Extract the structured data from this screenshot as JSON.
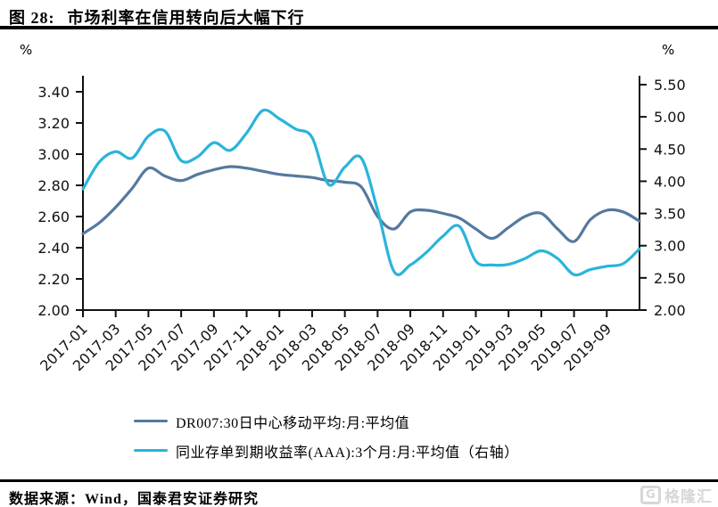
{
  "header": {
    "figure_label": "图 28:",
    "title": "市场利率在信用转向后大幅下行"
  },
  "footer": {
    "source": "数据来源：Wind，国泰君安证券研究"
  },
  "watermark": {
    "icon": "gelonghui-logo-icon",
    "text": "格隆汇"
  },
  "chart_data": {
    "type": "line",
    "title": "市场利率在信用转向后大幅下行",
    "legend_position": "bottom",
    "grid": false,
    "months": [
      "2017-01",
      "2017-02",
      "2017-03",
      "2017-04",
      "2017-05",
      "2017-06",
      "2017-07",
      "2017-08",
      "2017-09",
      "2017-10",
      "2017-11",
      "2017-12",
      "2018-01",
      "2018-02",
      "2018-03",
      "2018-04",
      "2018-05",
      "2018-06",
      "2018-07",
      "2018-08",
      "2018-09",
      "2018-10",
      "2018-11",
      "2018-12",
      "2019-01",
      "2019-02",
      "2019-03",
      "2019-04",
      "2019-05",
      "2019-06",
      "2019-07",
      "2019-08",
      "2019-09",
      "2019-10",
      "2019-11"
    ],
    "x_tick_labels": [
      "2017-01",
      "2017-03",
      "2017-05",
      "2017-07",
      "2017-09",
      "2017-11",
      "2018-01",
      "2018-03",
      "2018-05",
      "2018-07",
      "2018-09",
      "2018-11",
      "2019-01",
      "2019-03",
      "2019-05",
      "2019-07",
      "2019-09"
    ],
    "left_axis": {
      "unit": "%",
      "min": 2.0,
      "max": 3.4,
      "ticks": [
        "2.00",
        "2.20",
        "2.40",
        "2.60",
        "2.80",
        "3.00",
        "3.20",
        "3.40"
      ]
    },
    "right_axis": {
      "unit": "%",
      "min": 2.0,
      "max": 5.5,
      "ticks": [
        "2.00",
        "2.50",
        "3.00",
        "3.50",
        "4.00",
        "4.50",
        "5.00",
        "5.50"
      ]
    },
    "series": [
      {
        "name": "DR007:30日中心移动平均:月:平均值",
        "axis": "left",
        "color": "#55799F",
        "values": [
          2.49,
          2.56,
          2.66,
          2.78,
          2.91,
          2.86,
          2.83,
          2.87,
          2.9,
          2.92,
          2.91,
          2.89,
          2.87,
          2.86,
          2.85,
          2.83,
          2.82,
          2.79,
          2.6,
          2.52,
          2.63,
          2.64,
          2.62,
          2.59,
          2.52,
          2.46,
          2.53,
          2.6,
          2.62,
          2.52,
          2.44,
          2.58,
          2.64,
          2.63,
          2.57
        ]
      },
      {
        "name": "同业存单到期收益率(AAA):3个月:月:平均值（右轴）",
        "axis": "right",
        "color": "#2AB4DB",
        "values": [
          3.88,
          4.3,
          4.46,
          4.36,
          4.7,
          4.78,
          4.32,
          4.38,
          4.6,
          4.48,
          4.75,
          5.1,
          4.97,
          4.81,
          4.68,
          3.95,
          4.22,
          4.36,
          3.55,
          2.6,
          2.7,
          2.9,
          3.15,
          3.3,
          2.76,
          2.7,
          2.71,
          2.8,
          2.92,
          2.8,
          2.55,
          2.63,
          2.68,
          2.72,
          2.95
        ]
      }
    ]
  }
}
